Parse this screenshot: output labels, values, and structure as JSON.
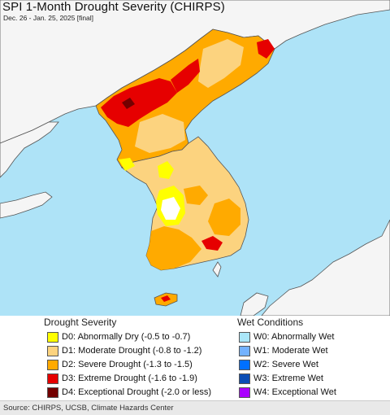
{
  "header": {
    "title": "SPI 1-Month Drought Severity (CHIRPS)",
    "subtitle": "Dec. 26 - Jan. 25, 2025 [final]"
  },
  "map": {
    "colors": {
      "water": "#aee3f7",
      "foreign_land": "#f5f5f5",
      "border": "#555555",
      "d0": "#ffff00",
      "d1": "#fcd37f",
      "d2": "#ffaa00",
      "d3": "#e60000",
      "d4": "#730000"
    }
  },
  "legend": {
    "drought": {
      "title": "Drought Severity",
      "items": [
        {
          "label": "D0: Abnormally Dry (-0.5 to -0.7)",
          "color": "#ffff00"
        },
        {
          "label": "D1: Moderate Drought (-0.8 to -1.2)",
          "color": "#fcd37f"
        },
        {
          "label": "D2: Severe Drought (-1.3 to -1.5)",
          "color": "#ffaa00"
        },
        {
          "label": "D3: Extreme Drought (-1.6 to -1.9)",
          "color": "#e60000"
        },
        {
          "label": "D4: Exceptional Drought (-2.0 or less)",
          "color": "#730000"
        }
      ]
    },
    "wet": {
      "title": "Wet Conditions",
      "items": [
        {
          "label": "W0: Abnormally Wet",
          "color": "#aae6f8"
        },
        {
          "label": "W1: Moderate Wet",
          "color": "#73b2ff"
        },
        {
          "label": "W2: Severe Wet",
          "color": "#0070ff"
        },
        {
          "label": "W3: Extreme Wet",
          "color": "#0a4cb4"
        },
        {
          "label": "W4: Exceptional Wet",
          "color": "#aa00ff"
        }
      ]
    }
  },
  "footer": {
    "source": "Source: CHIRPS, UCSB, Climate Hazards Center"
  }
}
